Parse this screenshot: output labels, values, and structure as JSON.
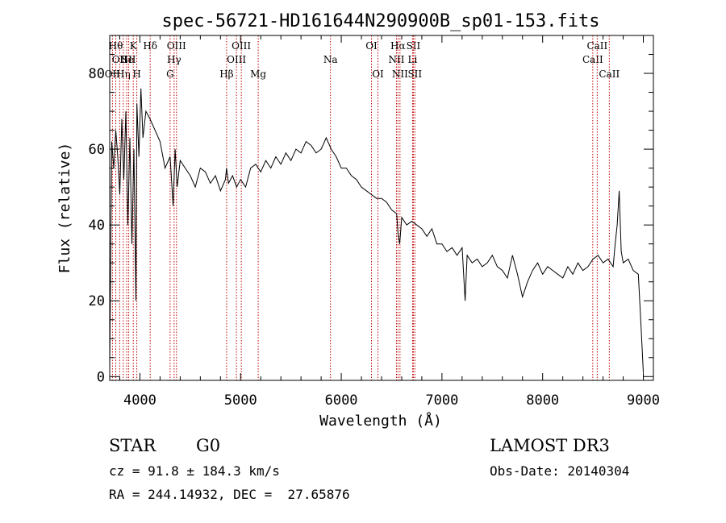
{
  "chart_data": {
    "type": "line",
    "title": "spec-56721-HD161644N290900B_sp01-153.fits",
    "xlabel": "Wavelength (Å)",
    "ylabel": "Flux (relative)",
    "xlim": [
      3700,
      9100
    ],
    "ylim": [
      -1,
      90
    ],
    "x_ticks": [
      4000,
      5000,
      6000,
      7000,
      8000,
      9000
    ],
    "y_ticks": [
      0,
      20,
      40,
      60,
      80
    ],
    "series": [
      {
        "x": [
          3700,
          3720,
          3740,
          3760,
          3780,
          3800,
          3820,
          3840,
          3860,
          3880,
          3900,
          3920,
          3940,
          3960,
          3970,
          3990,
          4010,
          4030,
          4060,
          4100,
          4150,
          4200,
          4250,
          4300,
          4330,
          4350,
          4370,
          4400,
          4450,
          4500,
          4550,
          4600,
          4650,
          4700,
          4750,
          4800,
          4850,
          4860,
          4880,
          4920,
          4960,
          5000,
          5050,
          5100,
          5150,
          5200,
          5250,
          5300,
          5350,
          5400,
          5450,
          5500,
          5550,
          5600,
          5650,
          5700,
          5750,
          5800,
          5850,
          5900,
          5950,
          6000,
          6050,
          6100,
          6150,
          6200,
          6250,
          6300,
          6350,
          6400,
          6450,
          6500,
          6550,
          6563,
          6580,
          6600,
          6650,
          6700,
          6750,
          6800,
          6850,
          6900,
          6950,
          7000,
          7050,
          7100,
          7150,
          7200,
          7230,
          7250,
          7300,
          7350,
          7400,
          7450,
          7500,
          7550,
          7600,
          7650,
          7700,
          7750,
          7800,
          7850,
          7900,
          7950,
          8000,
          8050,
          8100,
          8150,
          8200,
          8250,
          8300,
          8350,
          8400,
          8450,
          8500,
          8550,
          8600,
          8650,
          8700,
          8720,
          8740,
          8760,
          8780,
          8800,
          8850,
          8900,
          8950,
          8980,
          9000
        ],
        "y": [
          2,
          62,
          55,
          65,
          58,
          48,
          68,
          52,
          70,
          40,
          63,
          35,
          60,
          20,
          72,
          58,
          76,
          63,
          70,
          68,
          65,
          62,
          55,
          58,
          45,
          60,
          50,
          57,
          55,
          53,
          50,
          55,
          54,
          51,
          53,
          49,
          52,
          55,
          51,
          53,
          50,
          52,
          50,
          55,
          56,
          54,
          57,
          55,
          58,
          56,
          59,
          57,
          60,
          59,
          62,
          61,
          59,
          60,
          63,
          60,
          58,
          55,
          55,
          53,
          52,
          50,
          49,
          48,
          47,
          47,
          46,
          44,
          43,
          38,
          35,
          42,
          40,
          41,
          40,
          39,
          37,
          39,
          35,
          35,
          33,
          34,
          32,
          34,
          20,
          32,
          30,
          31,
          29,
          30,
          32,
          29,
          28,
          26,
          32,
          27,
          21,
          25,
          28,
          30,
          27,
          29,
          28,
          27,
          26,
          29,
          27,
          30,
          28,
          29,
          31,
          32,
          30,
          31,
          29,
          35,
          40,
          49,
          33,
          30,
          31,
          28,
          27,
          12,
          1
        ]
      }
    ],
    "emission_lines": [
      {
        "x": 3727,
        "label": "OII",
        "row": 2
      },
      {
        "x": 3760,
        "label": "Hθ",
        "row": 0
      },
      {
        "x": 3799,
        "label": "OII",
        "row": 1
      },
      {
        "x": 3835,
        "label": "Hη",
        "row": 2
      },
      {
        "x": 3869,
        "label": "He",
        "row": 1
      },
      {
        "x": 3889,
        "label": "SII",
        "row": 1
      },
      {
        "x": 3934,
        "label": "K",
        "row": 0
      },
      {
        "x": 3969,
        "label": "H",
        "row": 2
      },
      {
        "x": 4102,
        "label": "Hδ",
        "row": 0
      },
      {
        "x": 4300,
        "label": "G",
        "row": 2
      },
      {
        "x": 4340,
        "label": "Hγ",
        "row": 1
      },
      {
        "x": 4363,
        "label": "OIII",
        "row": 0
      },
      {
        "x": 4861,
        "label": "Hβ",
        "row": 2
      },
      {
        "x": 4959,
        "label": "OIII",
        "row": 1
      },
      {
        "x": 5007,
        "label": "OIII",
        "row": 0
      },
      {
        "x": 5175,
        "label": "Mg",
        "row": 2
      },
      {
        "x": 5893,
        "label": "Na",
        "row": 1
      },
      {
        "x": 6300,
        "label": "OI",
        "row": 0
      },
      {
        "x": 6364,
        "label": "OI",
        "row": 2
      },
      {
        "x": 6548,
        "label": "NII",
        "row": 1
      },
      {
        "x": 6563,
        "label": "Hα",
        "row": 0
      },
      {
        "x": 6583,
        "label": "NII",
        "row": 2
      },
      {
        "x": 6708,
        "label": "Li",
        "row": 1
      },
      {
        "x": 6716,
        "label": "SII",
        "row": 0
      },
      {
        "x": 6731,
        "label": "SII",
        "row": 2
      },
      {
        "x": 8498,
        "label": "CaII",
        "row": 1
      },
      {
        "x": 8542,
        "label": "CaII",
        "row": 0
      },
      {
        "x": 8662,
        "label": "CaII",
        "row": 2
      }
    ]
  },
  "info": {
    "class": "STAR",
    "subclass": "G0",
    "survey": "LAMOST DR3",
    "cz": "cz = 91.8 ± 184.3 km/s",
    "obs_date": "Obs-Date: 20140304",
    "radec": "RA = 244.14932, DEC =  27.65876"
  }
}
